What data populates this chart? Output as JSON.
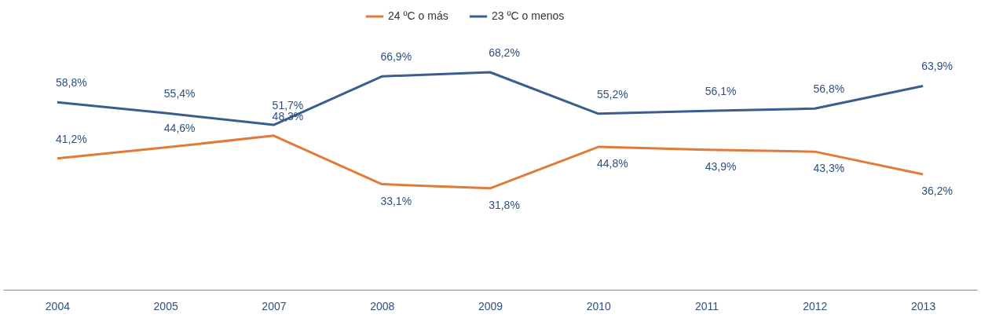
{
  "chart_data": {
    "type": "line",
    "categories": [
      "2004",
      "2005",
      "2007",
      "2008",
      "2009",
      "2010",
      "2011",
      "2012",
      "2013"
    ],
    "legend": "top",
    "grid": false,
    "marker": "none",
    "series": [
      {
        "name": "24 ºC o más",
        "color": "#e07b39",
        "values": [
          41.2,
          44.6,
          48.3,
          33.1,
          31.8,
          44.8,
          43.9,
          43.3,
          36.2
        ],
        "value_labels": [
          "41,2%",
          "44,6%",
          "48,3%",
          "33,1%",
          "31,8%",
          "44,8%",
          "43,9%",
          "43,3%",
          "36,2%"
        ]
      },
      {
        "name": "23 ºC o menos",
        "color": "#3a5f8f",
        "values": [
          58.8,
          55.4,
          51.7,
          66.9,
          68.2,
          55.2,
          56.1,
          56.8,
          63.9
        ],
        "value_labels": [
          "58,8%",
          "55,4%",
          "51,7%",
          "66,9%",
          "68,2%",
          "55,2%",
          "56,1%",
          "56,8%",
          "63,9%"
        ]
      }
    ]
  }
}
